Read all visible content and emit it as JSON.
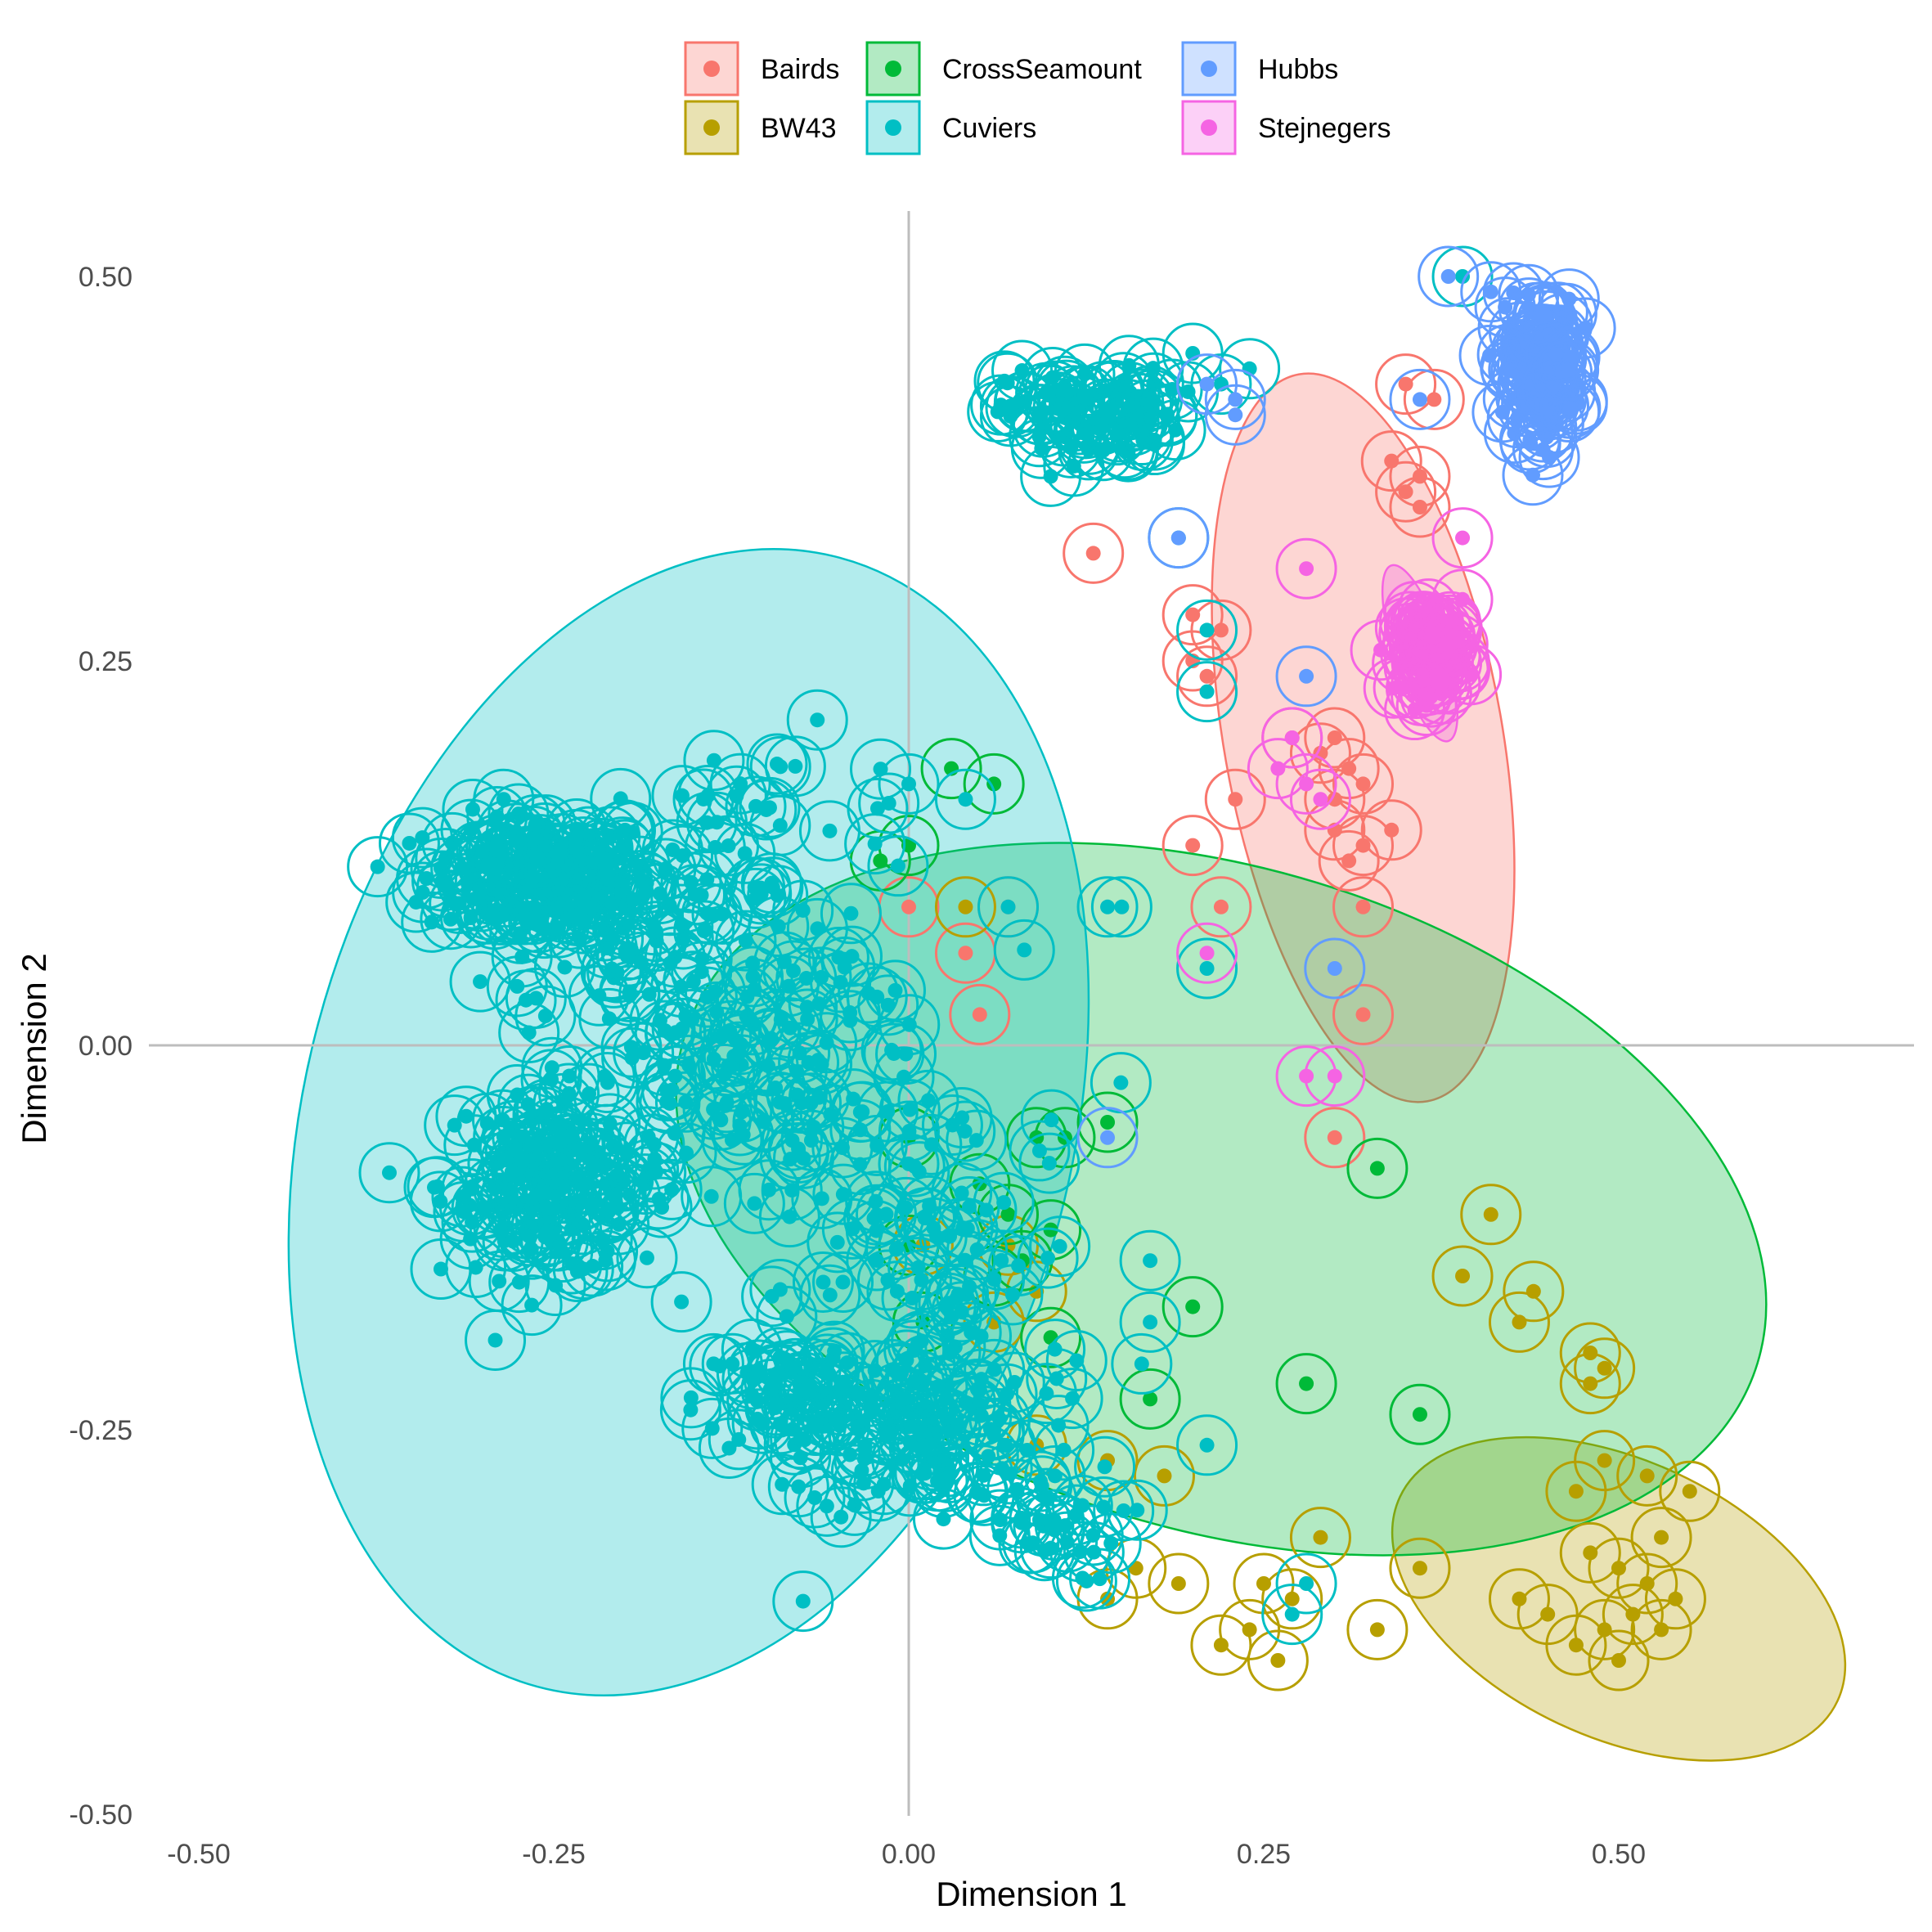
{
  "chart_data": {
    "type": "scatter",
    "title": "",
    "xlabel": "Dimension 1",
    "ylabel": "Dimension 2",
    "xlim": [
      -0.5,
      0.7
    ],
    "ylim": [
      -0.5,
      0.5
    ],
    "x_ticks": [
      -0.5,
      -0.25,
      0.0,
      0.25,
      0.5
    ],
    "y_ticks": [
      -0.5,
      -0.25,
      0.0,
      0.25,
      0.5
    ],
    "x_tick_labels": [
      "-0.50",
      "-0.25",
      "0.00",
      "0.25",
      "0.50"
    ],
    "y_tick_labels": [
      "-0.50",
      "-0.25",
      "0.00",
      "0.25",
      "0.50"
    ],
    "grid": false,
    "reference_lines": {
      "x": 0,
      "y": 0
    },
    "legend_position": "top",
    "marker_style": "filled dot inside open ring",
    "series": [
      {
        "name": "Bairds",
        "color": "#F8766D",
        "ellipse": {
          "cx": 0.32,
          "cy": 0.2,
          "rx": 0.098,
          "ry": 0.24,
          "angle_deg": 10
        },
        "points": [
          [
            0.35,
            0.43
          ],
          [
            0.37,
            0.42
          ],
          [
            0.34,
            0.38
          ],
          [
            0.36,
            0.37
          ],
          [
            0.35,
            0.36
          ],
          [
            0.36,
            0.35
          ],
          [
            0.13,
            0.32
          ],
          [
            0.2,
            0.28
          ],
          [
            0.22,
            0.27
          ],
          [
            0.2,
            0.25
          ],
          [
            0.21,
            0.24
          ],
          [
            0.27,
            0.2
          ],
          [
            0.3,
            0.2
          ],
          [
            0.29,
            0.19
          ],
          [
            0.31,
            0.18
          ],
          [
            0.32,
            0.17
          ],
          [
            0.3,
            0.16
          ],
          [
            0.23,
            0.16
          ],
          [
            0.2,
            0.13
          ],
          [
            0.3,
            0.14
          ],
          [
            0.32,
            0.13
          ],
          [
            0.34,
            0.14
          ],
          [
            0.31,
            0.12
          ],
          [
            0.22,
            0.09
          ],
          [
            0.32,
            0.09
          ],
          [
            0.0,
            0.09
          ],
          [
            0.07,
            0.09
          ],
          [
            0.04,
            0.06
          ],
          [
            0.05,
            0.02
          ],
          [
            0.32,
            0.02
          ],
          [
            0.3,
            -0.06
          ]
        ]
      },
      {
        "name": "BW43",
        "color": "#B79F00",
        "ellipse": {
          "cx": 0.5,
          "cy": -0.36,
          "rx": 0.17,
          "ry": 0.09,
          "angle_deg": -25
        },
        "points": [
          [
            0.41,
            -0.11
          ],
          [
            0.39,
            -0.15
          ],
          [
            0.44,
            -0.16
          ],
          [
            0.43,
            -0.18
          ],
          [
            0.48,
            -0.2
          ],
          [
            0.49,
            -0.21
          ],
          [
            0.48,
            -0.22
          ],
          [
            0.49,
            -0.27
          ],
          [
            0.47,
            -0.29
          ],
          [
            0.52,
            -0.28
          ],
          [
            0.55,
            -0.29
          ],
          [
            0.53,
            -0.32
          ],
          [
            0.48,
            -0.33
          ],
          [
            0.5,
            -0.34
          ],
          [
            0.52,
            -0.35
          ],
          [
            0.54,
            -0.36
          ],
          [
            0.51,
            -0.37
          ],
          [
            0.49,
            -0.38
          ],
          [
            0.53,
            -0.38
          ],
          [
            0.5,
            -0.4
          ],
          [
            0.47,
            -0.39
          ],
          [
            0.45,
            -0.37
          ],
          [
            0.43,
            -0.36
          ],
          [
            0.36,
            -0.34
          ],
          [
            0.33,
            -0.38
          ],
          [
            0.29,
            -0.32
          ],
          [
            0.25,
            -0.35
          ],
          [
            0.27,
            -0.36
          ],
          [
            0.24,
            -0.38
          ],
          [
            0.22,
            -0.39
          ],
          [
            0.26,
            -0.4
          ],
          [
            0.19,
            -0.35
          ],
          [
            0.16,
            -0.34
          ],
          [
            0.14,
            -0.36
          ],
          [
            0.09,
            -0.26
          ],
          [
            0.14,
            -0.27
          ],
          [
            0.18,
            -0.28
          ],
          [
            0.01,
            -0.13
          ],
          [
            0.07,
            -0.13
          ],
          [
            0.09,
            -0.16
          ],
          [
            0.06,
            -0.18
          ],
          [
            0.04,
            0.09
          ]
        ]
      },
      {
        "name": "CrossSeamount",
        "color": "#00BA38",
        "ellipse": {
          "cx": 0.22,
          "cy": -0.1,
          "rx": 0.395,
          "ry": 0.215,
          "angle_deg": -17
        },
        "points": [
          [
            0.03,
            0.18
          ],
          [
            0.06,
            0.17
          ],
          [
            0.0,
            0.13
          ],
          [
            -0.02,
            0.12
          ],
          [
            0.11,
            -0.06
          ],
          [
            0.14,
            -0.05
          ],
          [
            0.09,
            -0.06
          ],
          [
            0.0,
            -0.06
          ],
          [
            0.05,
            -0.09
          ],
          [
            0.07,
            -0.11
          ],
          [
            0.1,
            -0.12
          ],
          [
            0.0,
            -0.13
          ],
          [
            0.08,
            -0.14
          ],
          [
            0.06,
            -0.15
          ],
          [
            0.01,
            -0.18
          ],
          [
            0.1,
            -0.19
          ],
          [
            0.2,
            -0.17
          ],
          [
            0.17,
            -0.23
          ],
          [
            0.28,
            -0.22
          ],
          [
            0.33,
            -0.08
          ],
          [
            0.36,
            -0.24
          ]
        ]
      },
      {
        "name": "Cuviers",
        "color": "#00BFC4",
        "ellipse": {
          "cx": -0.155,
          "cy": -0.05,
          "rx": 0.27,
          "ry": 0.38,
          "angle_deg": -15
        },
        "clusters": [
          {
            "cx": -0.26,
            "cy": 0.11,
            "sx": 0.04,
            "sy": 0.02,
            "n": 160
          },
          {
            "cx": -0.2,
            "cy": 0.07,
            "sx": 0.05,
            "sy": 0.04,
            "n": 60
          },
          {
            "cx": -0.25,
            "cy": -0.09,
            "sx": 0.04,
            "sy": 0.03,
            "n": 160
          },
          {
            "cx": -0.12,
            "cy": -0.02,
            "sx": 0.05,
            "sy": 0.05,
            "n": 90
          },
          {
            "cx": -0.1,
            "cy": 0.14,
            "sx": 0.06,
            "sy": 0.03,
            "n": 40
          },
          {
            "cx": -0.04,
            "cy": -0.08,
            "sx": 0.06,
            "sy": 0.07,
            "n": 80
          },
          {
            "cx": -0.07,
            "cy": -0.23,
            "sx": 0.04,
            "sy": 0.02,
            "n": 70
          },
          {
            "cx": 0.01,
            "cy": -0.25,
            "sx": 0.04,
            "sy": 0.03,
            "n": 90
          },
          {
            "cx": 0.09,
            "cy": -0.31,
            "sx": 0.03,
            "sy": 0.02,
            "n": 35
          },
          {
            "cx": 0.13,
            "cy": 0.41,
            "sx": 0.03,
            "sy": 0.015,
            "n": 90
          },
          {
            "cx": 0.05,
            "cy": -0.16,
            "sx": 0.05,
            "sy": 0.05,
            "n": 40
          }
        ],
        "points": [
          [
            0.39,
            0.5
          ],
          [
            0.24,
            0.44
          ],
          [
            0.22,
            0.43
          ],
          [
            0.2,
            0.45
          ],
          [
            0.1,
            0.37
          ],
          [
            0.19,
            0.33
          ],
          [
            0.21,
            0.27
          ],
          [
            0.21,
            0.23
          ],
          [
            0.21,
            0.05
          ],
          [
            0.07,
            0.09
          ],
          [
            0.14,
            0.09
          ],
          [
            0.15,
            0.09
          ],
          [
            0.17,
            -0.14
          ],
          [
            0.17,
            -0.18
          ],
          [
            0.21,
            -0.26
          ],
          [
            0.28,
            -0.35
          ],
          [
            0.27,
            -0.37
          ],
          [
            0.0,
            0.17
          ],
          [
            0.04,
            0.16
          ]
        ]
      },
      {
        "name": "Hubbs",
        "color": "#619CFF",
        "ellipse": null,
        "clusters": [
          {
            "cx": 0.445,
            "cy": 0.44,
            "sx": 0.012,
            "sy": 0.022,
            "n": 110
          }
        ],
        "points": [
          [
            0.38,
            0.5
          ],
          [
            0.41,
            0.49
          ],
          [
            0.42,
            0.48
          ],
          [
            0.36,
            0.42
          ],
          [
            0.19,
            0.33
          ],
          [
            0.28,
            0.24
          ],
          [
            0.3,
            0.05
          ],
          [
            0.14,
            -0.06
          ],
          [
            0.21,
            0.43
          ],
          [
            0.23,
            0.42
          ],
          [
            0.23,
            0.41
          ]
        ]
      },
      {
        "name": "Stejnegers",
        "color": "#F564E3",
        "ellipse": {
          "cx": 0.36,
          "cy": 0.255,
          "rx": 0.018,
          "ry": 0.06,
          "angle_deg": 18
        },
        "clusters": [
          {
            "cx": 0.37,
            "cy": 0.255,
            "sx": 0.01,
            "sy": 0.013,
            "n": 90
          }
        ],
        "points": [
          [
            0.39,
            0.33
          ],
          [
            0.39,
            0.29
          ],
          [
            0.28,
            0.31
          ],
          [
            0.27,
            0.2
          ],
          [
            0.28,
            0.17
          ],
          [
            0.29,
            0.16
          ],
          [
            0.26,
            0.18
          ],
          [
            0.21,
            0.06
          ],
          [
            0.28,
            -0.02
          ],
          [
            0.3,
            -0.02
          ]
        ]
      }
    ]
  }
}
